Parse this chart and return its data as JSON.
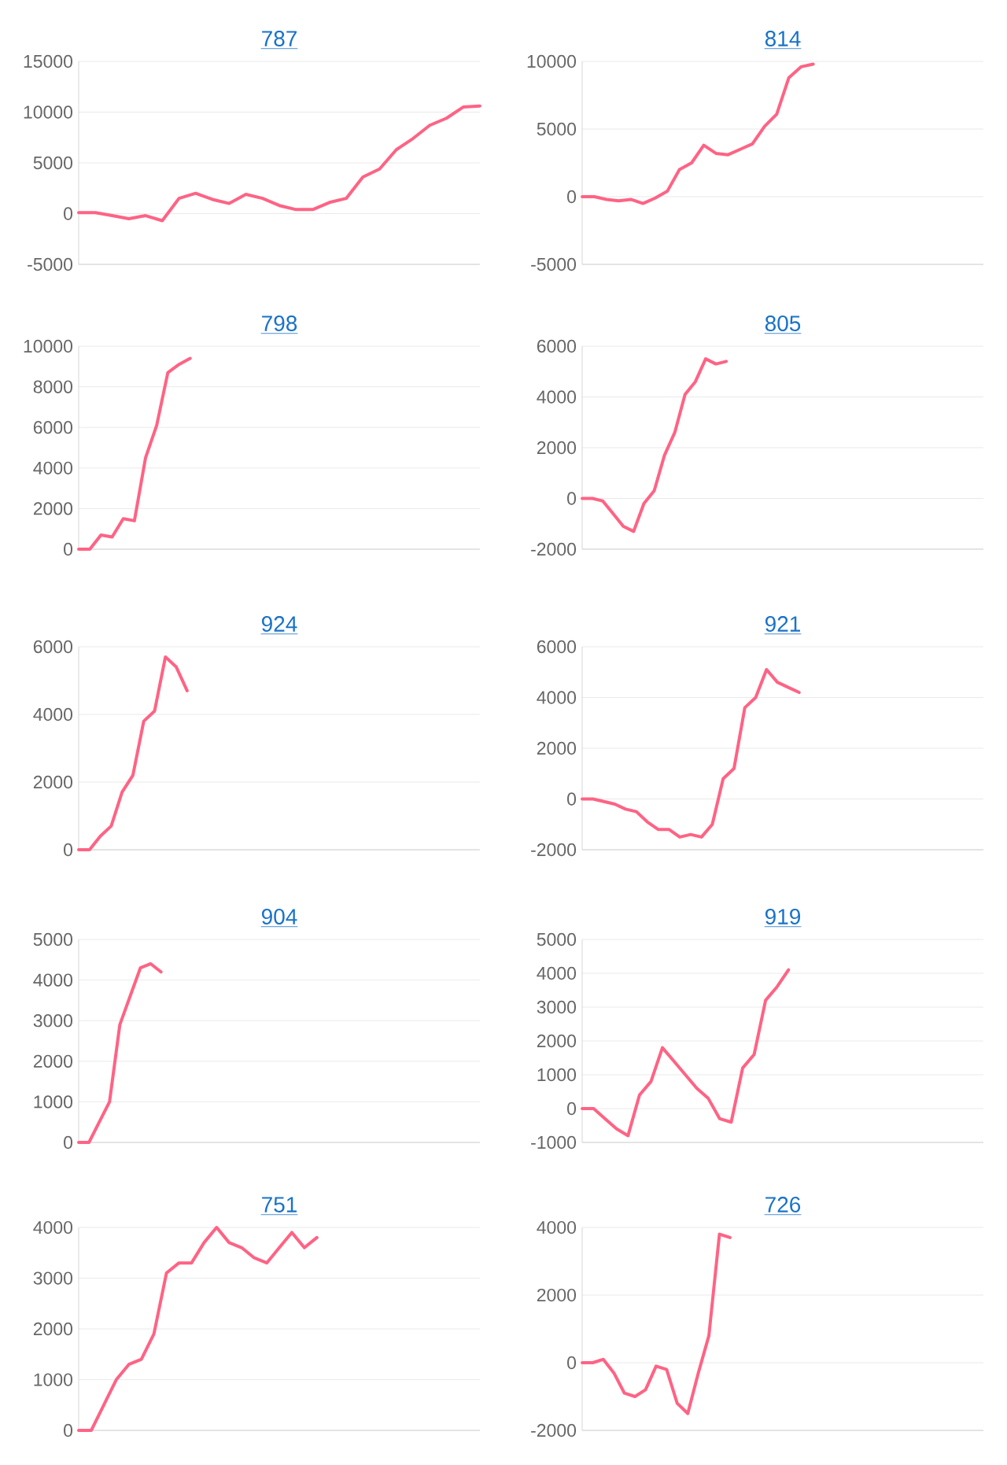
{
  "chart_data": [
    {
      "type": "line",
      "title": "787",
      "categories": [
        null,
        null,
        null,
        null,
        null,
        null,
        null,
        null,
        null,
        null,
        null,
        null,
        null,
        null,
        null,
        null,
        null,
        null,
        null,
        null,
        null,
        null,
        null,
        null,
        null
      ],
      "values": [
        100,
        100,
        -200,
        -500,
        -200,
        -700,
        1500,
        2000,
        1400,
        1000,
        1900,
        1500,
        800,
        400,
        400,
        1100,
        1500,
        3600,
        4400,
        6300,
        7400,
        8700,
        9400,
        10500,
        10600
      ],
      "color": "#ff6384",
      "ylim": [
        -5000,
        15000
      ],
      "yticks": [
        -5000,
        0,
        5000,
        10000,
        15000
      ],
      "grid": "y",
      "tick_labels": "y"
    },
    {
      "type": "line",
      "title": "814",
      "categories": [
        null,
        null,
        null,
        null,
        null,
        null,
        null,
        null,
        null,
        null,
        null,
        null,
        null,
        null,
        null,
        null,
        null,
        null,
        null,
        null,
        null,
        null,
        null,
        null,
        null,
        null,
        null,
        null,
        null,
        null,
        null,
        null,
        null,
        null
      ],
      "values": [
        0,
        0,
        -200,
        -300,
        -200,
        -500,
        -100,
        400,
        2000,
        2500,
        3800,
        3200,
        3100,
        3500,
        3900,
        5200,
        6100,
        8800,
        9600,
        9800,
        null,
        null,
        null,
        null,
        null,
        null,
        null,
        null,
        null,
        null,
        null,
        null,
        null,
        null
      ],
      "color": "#ff6384",
      "ylim": [
        -5000,
        10000
      ],
      "yticks": [
        -5000,
        0,
        5000,
        10000
      ],
      "grid": "y",
      "tick_labels": "y"
    },
    {
      "type": "line",
      "title": "798",
      "categories": [
        null,
        null,
        null,
        null,
        null,
        null,
        null,
        null,
        null,
        null,
        null,
        null,
        null,
        null,
        null,
        null,
        null,
        null,
        null,
        null,
        null,
        null,
        null,
        null,
        null,
        null,
        null,
        null,
        null,
        null,
        null,
        null,
        null,
        null,
        null,
        null,
        null
      ],
      "values": [
        0,
        0,
        700,
        600,
        1500,
        1400,
        4500,
        6100,
        8700,
        9100,
        9400,
        null,
        null,
        null,
        null,
        null,
        null,
        null,
        null,
        null,
        null,
        null,
        null,
        null,
        null,
        null,
        null,
        null,
        null,
        null,
        null,
        null,
        null,
        null,
        null,
        null,
        null
      ],
      "color": "#ff6384",
      "ylim": [
        0,
        10000
      ],
      "yticks": [
        0,
        2000,
        4000,
        6000,
        8000,
        10000
      ],
      "grid": "y",
      "tick_labels": "y"
    },
    {
      "type": "line",
      "title": "805",
      "categories": [
        null,
        null,
        null,
        null,
        null,
        null,
        null,
        null,
        null,
        null,
        null,
        null,
        null,
        null,
        null,
        null,
        null,
        null,
        null,
        null,
        null,
        null,
        null,
        null,
        null,
        null,
        null,
        null,
        null,
        null,
        null,
        null,
        null,
        null,
        null,
        null,
        null,
        null,
        null,
        null
      ],
      "values": [
        0,
        0,
        -100,
        -600,
        -1100,
        -1300,
        -200,
        300,
        1700,
        2600,
        4100,
        4600,
        5500,
        5300,
        5400,
        null,
        null,
        null,
        null,
        null,
        null,
        null,
        null,
        null,
        null,
        null,
        null,
        null,
        null,
        null,
        null,
        null,
        null,
        null,
        null,
        null,
        null,
        null,
        null,
        null
      ],
      "color": "#ff6384",
      "ylim": [
        -2000,
        6000
      ],
      "yticks": [
        -2000,
        0,
        2000,
        4000,
        6000
      ],
      "grid": "y",
      "tick_labels": "y"
    },
    {
      "type": "line",
      "title": "924",
      "categories": [
        null,
        null,
        null,
        null,
        null,
        null,
        null,
        null,
        null,
        null,
        null,
        null,
        null,
        null,
        null,
        null,
        null,
        null,
        null,
        null,
        null,
        null,
        null,
        null,
        null,
        null,
        null,
        null,
        null,
        null,
        null,
        null,
        null,
        null,
        null,
        null,
        null,
        null
      ],
      "values": [
        0,
        0,
        400,
        700,
        1700,
        2200,
        3800,
        4100,
        5700,
        5400,
        4700,
        null,
        null,
        null,
        null,
        null,
        null,
        null,
        null,
        null,
        null,
        null,
        null,
        null,
        null,
        null,
        null,
        null,
        null,
        null,
        null,
        null,
        null,
        null,
        null,
        null,
        null,
        null
      ],
      "color": "#ff6384",
      "ylim": [
        0,
        6000
      ],
      "yticks": [
        0,
        2000,
        4000,
        6000
      ],
      "grid": "y",
      "tick_labels": "y"
    },
    {
      "type": "line",
      "title": "921",
      "categories": [
        null,
        null,
        null,
        null,
        null,
        null,
        null,
        null,
        null,
        null,
        null,
        null,
        null,
        null,
        null,
        null,
        null,
        null,
        null,
        null,
        null,
        null,
        null,
        null,
        null,
        null,
        null,
        null,
        null,
        null,
        null,
        null,
        null,
        null,
        null,
        null,
        null,
        null
      ],
      "values": [
        0,
        0,
        -100,
        -200,
        -400,
        -500,
        -900,
        -1200,
        -1200,
        -1500,
        -1400,
        -1500,
        -1000,
        800,
        1200,
        3600,
        4000,
        5100,
        4600,
        4400,
        4200,
        null,
        null,
        null,
        null,
        null,
        null,
        null,
        null,
        null,
        null,
        null,
        null,
        null,
        null,
        null,
        null,
        null
      ],
      "color": "#ff6384",
      "ylim": [
        -2000,
        6000
      ],
      "yticks": [
        -2000,
        0,
        2000,
        4000,
        6000
      ],
      "grid": "y",
      "tick_labels": "y"
    },
    {
      "type": "line",
      "title": "904",
      "categories": [
        null,
        null,
        null,
        null,
        null,
        null,
        null,
        null,
        null,
        null,
        null,
        null,
        null,
        null,
        null,
        null,
        null,
        null,
        null,
        null,
        null,
        null,
        null,
        null,
        null,
        null,
        null,
        null,
        null,
        null,
        null,
        null,
        null,
        null,
        null,
        null,
        null,
        null,
        null,
        null
      ],
      "values": [
        0,
        0,
        500,
        1000,
        2900,
        3600,
        4300,
        4400,
        4200,
        null,
        null,
        null,
        null,
        null,
        null,
        null,
        null,
        null,
        null,
        null,
        null,
        null,
        null,
        null,
        null,
        null,
        null,
        null,
        null,
        null,
        null,
        null,
        null,
        null,
        null,
        null,
        null,
        null,
        null,
        null
      ],
      "color": "#ff6384",
      "ylim": [
        0,
        5000
      ],
      "yticks": [
        0,
        1000,
        2000,
        3000,
        4000,
        5000
      ],
      "grid": "y",
      "tick_labels": "y"
    },
    {
      "type": "line",
      "title": "919",
      "categories": [
        null,
        null,
        null,
        null,
        null,
        null,
        null,
        null,
        null,
        null,
        null,
        null,
        null,
        null,
        null,
        null,
        null,
        null,
        null,
        null,
        null,
        null,
        null,
        null,
        null,
        null,
        null,
        null,
        null,
        null,
        null,
        null,
        null,
        null,
        null,
        null
      ],
      "values": [
        0,
        0,
        -300,
        -600,
        -800,
        400,
        800,
        1800,
        1400,
        1000,
        600,
        300,
        -300,
        -400,
        1200,
        1600,
        3200,
        3600,
        4100,
        null,
        null,
        null,
        null,
        null,
        null,
        null,
        null,
        null,
        null,
        null,
        null,
        null,
        null,
        null,
        null,
        null
      ],
      "color": "#ff6384",
      "ylim": [
        -1000,
        5000
      ],
      "yticks": [
        -1000,
        0,
        1000,
        2000,
        3000,
        4000,
        5000
      ],
      "grid": "y",
      "tick_labels": "y"
    },
    {
      "type": "line",
      "title": "751",
      "categories": [
        null,
        null,
        null,
        null,
        null,
        null,
        null,
        null,
        null,
        null,
        null,
        null,
        null,
        null,
        null,
        null,
        null,
        null,
        null,
        null,
        null,
        null,
        null,
        null,
        null,
        null,
        null,
        null,
        null,
        null,
        null,
        null,
        null
      ],
      "values": [
        0,
        0,
        500,
        1000,
        1300,
        1400,
        1900,
        3100,
        3300,
        3300,
        3700,
        4000,
        3700,
        3600,
        3400,
        3300,
        3600,
        3900,
        3600,
        3800,
        null,
        null,
        null,
        null,
        null,
        null,
        null,
        null,
        null,
        null,
        null,
        null,
        null
      ],
      "color": "#ff6384",
      "ylim": [
        0,
        4000
      ],
      "yticks": [
        0,
        1000,
        2000,
        3000,
        4000
      ],
      "grid": "y",
      "tick_labels": "y"
    },
    {
      "type": "line",
      "title": "726",
      "categories": [
        null,
        null,
        null,
        null,
        null,
        null,
        null,
        null,
        null,
        null,
        null,
        null,
        null,
        null,
        null,
        null,
        null,
        null,
        null,
        null,
        null,
        null,
        null,
        null,
        null,
        null,
        null,
        null,
        null,
        null,
        null,
        null,
        null,
        null,
        null,
        null,
        null,
        null,
        null
      ],
      "values": [
        0,
        0,
        100,
        -300,
        -900,
        -1000,
        -800,
        -100,
        -200,
        -1200,
        -1500,
        -300,
        800,
        3800,
        3700,
        null,
        null,
        null,
        null,
        null,
        null,
        null,
        null,
        null,
        null,
        null,
        null,
        null,
        null,
        null,
        null,
        null,
        null,
        null,
        null,
        null,
        null,
        null,
        null
      ],
      "color": "#ff6384",
      "ylim": [
        -2000,
        4000
      ],
      "yticks": [
        -2000,
        0,
        2000,
        4000
      ],
      "grid": "y",
      "tick_labels": "y"
    }
  ]
}
